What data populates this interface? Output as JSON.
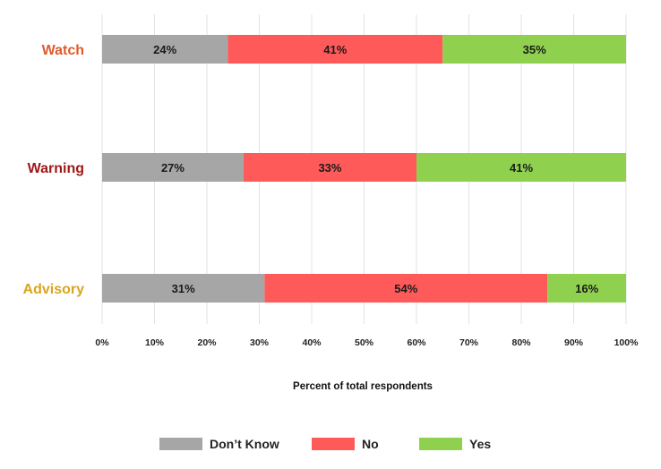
{
  "chart_data": {
    "type": "bar",
    "orientation": "horizontal",
    "stacked": true,
    "categories": [
      "Watch",
      "Warning",
      "Advisory"
    ],
    "category_colors": [
      "#E05A2B",
      "#A01818",
      "#D9A520"
    ],
    "series": [
      {
        "name": "Don’t Know",
        "color": "#A6A6A6",
        "values": [
          24,
          27,
          31
        ],
        "labels": [
          "24%",
          "27%",
          "31%"
        ]
      },
      {
        "name": "No",
        "color": "#FF5A5A",
        "values": [
          41,
          33,
          54
        ],
        "labels": [
          "41%",
          "33%",
          "54%"
        ]
      },
      {
        "name": "Yes",
        "color": "#8FD14F",
        "values": [
          35,
          41,
          16
        ],
        "labels": [
          "35%",
          "41%",
          "16%"
        ]
      }
    ],
    "xlim": [
      0,
      100
    ],
    "xticks": [
      "0%",
      "10%",
      "20%",
      "30%",
      "40%",
      "50%",
      "60%",
      "70%",
      "80%",
      "90%",
      "100%"
    ],
    "xlabel": "Percent of total respondents",
    "ylabel": "",
    "title": "",
    "grid": "vertical",
    "legend_position": "bottom"
  }
}
